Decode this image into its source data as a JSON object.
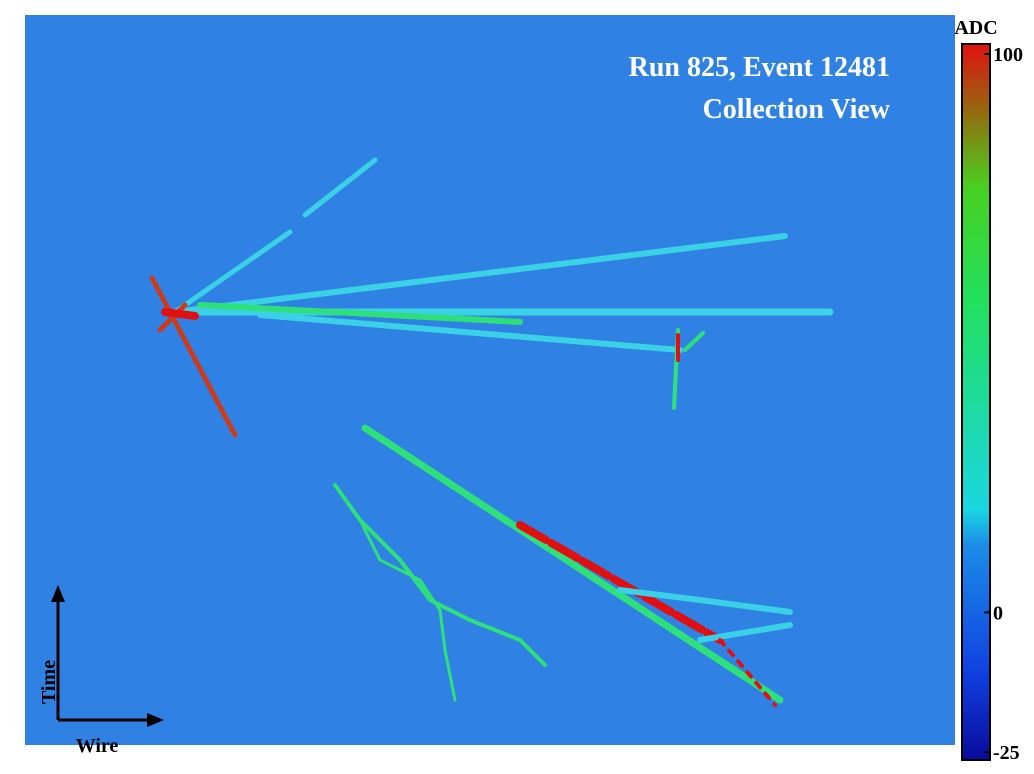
{
  "display": {
    "title": "Run 825, Event 12481",
    "subtitle": "Collection View",
    "x_axis": "Wire",
    "y_axis": "Time",
    "colorbar": {
      "label": "ADC",
      "lim": [
        -25,
        100
      ],
      "ticks": [
        100,
        0,
        -25
      ]
    }
  }
}
